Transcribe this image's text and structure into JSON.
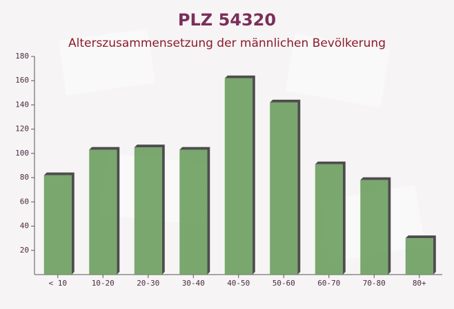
{
  "chart_data": {
    "type": "bar",
    "title": "PLZ 54320",
    "subtitle": "Alterszusammensetzung der männlichen Bevölkerung",
    "categories": [
      "< 10",
      "10-20",
      "20-30",
      "30-40",
      "40-50",
      "50-60",
      "60-70",
      "70-80",
      "80+"
    ],
    "values": [
      82,
      103,
      105,
      103,
      162,
      142,
      91,
      78,
      30
    ],
    "color": "#6b9e5e",
    "ylim": [
      0,
      180
    ],
    "yticks": [
      20,
      40,
      60,
      80,
      100,
      120,
      140,
      160,
      180
    ],
    "grid": false
  }
}
